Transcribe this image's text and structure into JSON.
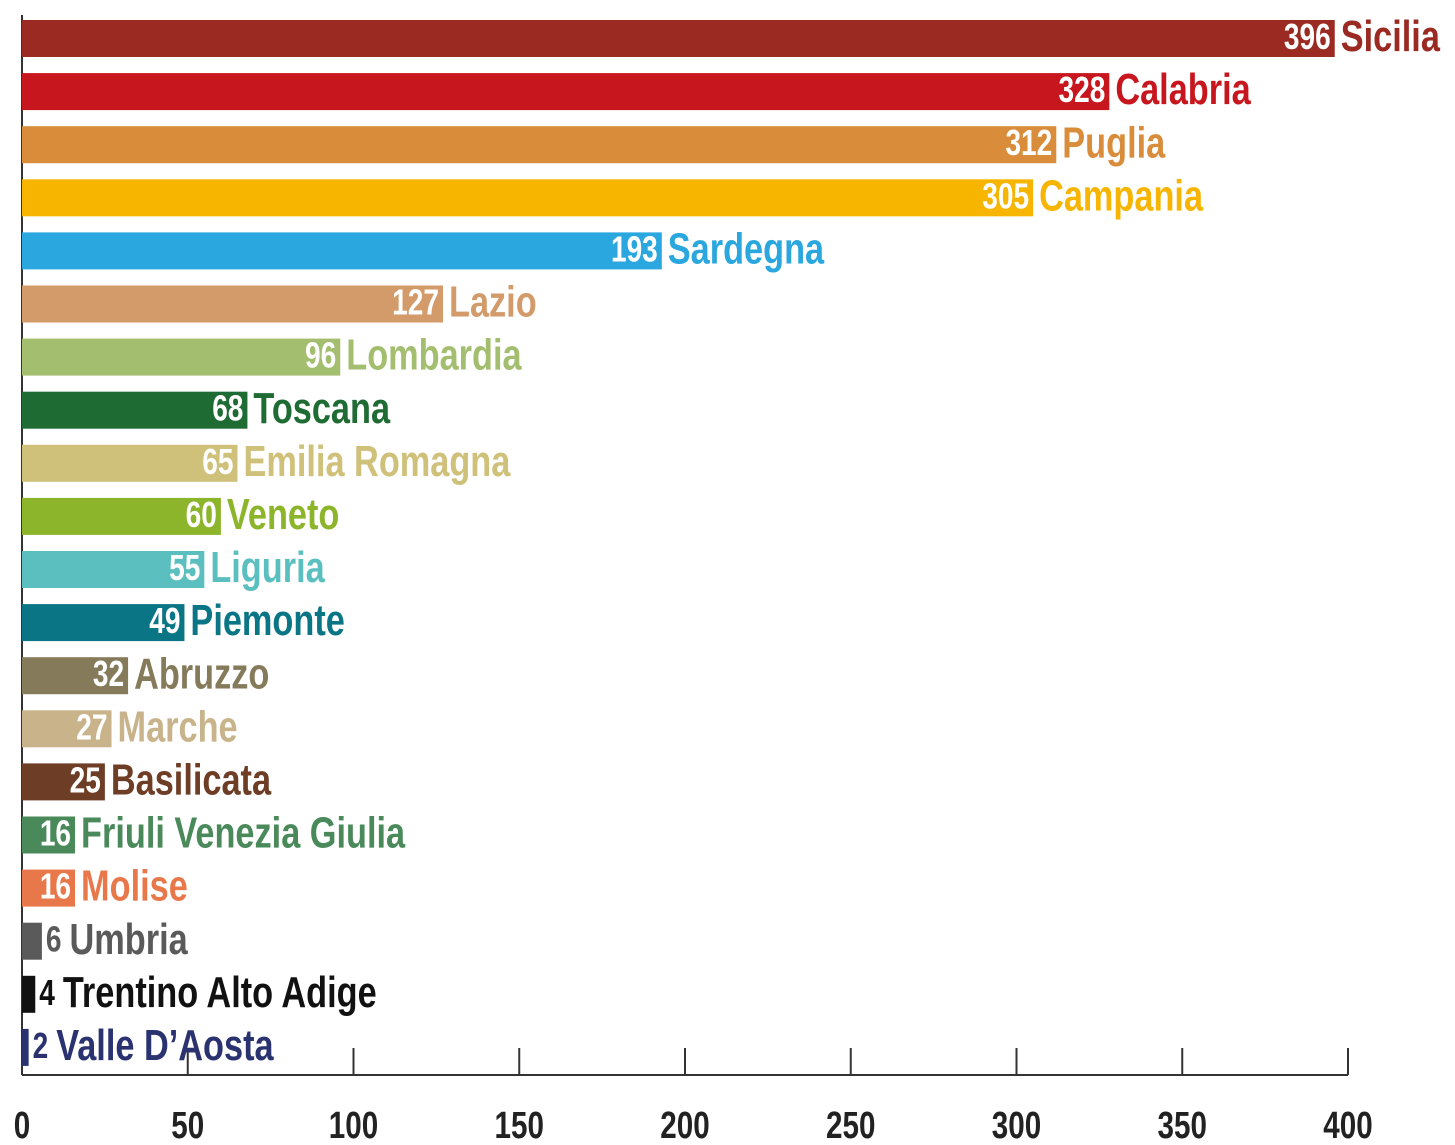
{
  "chart_data": {
    "type": "hbar",
    "categories": [
      "Sicilia",
      "Calabria",
      "Puglia",
      "Campania",
      "Sardegna",
      "Lazio",
      "Lombardia",
      "Toscana",
      "Emilia Romagna",
      "Veneto",
      "Liguria",
      "Piemonte",
      "Abruzzo",
      "Marche",
      "Basilicata",
      "Friuli Venezia Giulia",
      "Molise",
      "Umbria",
      "Trentino Alto Adige",
      "Valle D’Aosta"
    ],
    "values": [
      396,
      328,
      312,
      305,
      193,
      127,
      96,
      68,
      65,
      60,
      55,
      49,
      32,
      27,
      25,
      16,
      16,
      6,
      4,
      2
    ],
    "colors": [
      "#9a2a22",
      "#c8161e",
      "#d98c3a",
      "#f7b500",
      "#2aa7df",
      "#d39a6a",
      "#a3be6f",
      "#1f6b34",
      "#cfc07a",
      "#8cb52b",
      "#5bbfbf",
      "#0a7585",
      "#857a5a",
      "#c8b38a",
      "#6e3d26",
      "#4a8a5a",
      "#e8784a",
      "#5a5a5a",
      "#111111",
      "#2a3370"
    ],
    "xlim": [
      0,
      400
    ],
    "xticks": [
      0,
      50,
      100,
      150,
      200,
      250,
      300,
      350,
      400
    ]
  }
}
